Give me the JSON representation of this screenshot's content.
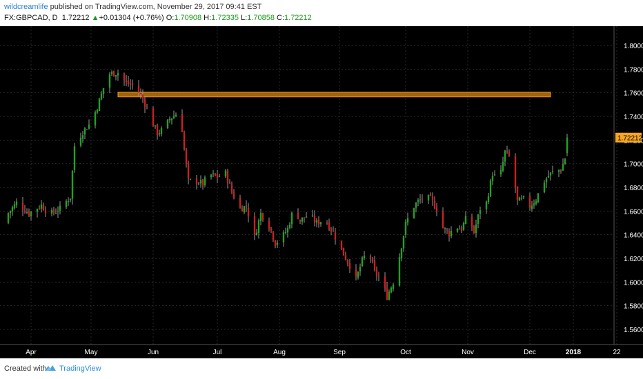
{
  "header": {
    "author": "wildcreamlife",
    "published_text": " published on TradingView.com, November 29, 2017 09:41 EST",
    "symbol": "FX:GBPCAD, D",
    "last": "1.72212",
    "change_arrow": "▲",
    "change": "+0.01304 (+0.76%)",
    "o_label": "O:",
    "o_value": "1.70908",
    "h_label": "H:",
    "h_value": "1.72335",
    "l_label": "L:",
    "l_value": "1.70858",
    "c_label": "C:",
    "c_value": "1.72212"
  },
  "footer": {
    "created_label": "Created with",
    "brand": "TradingView"
  },
  "colors": {
    "background": "#000000",
    "grid": "#2a2a2a",
    "up": "#1fa51f",
    "down": "#cc1f1f",
    "wick": "#9a9a9a",
    "zone_fill": "#c87a10",
    "zone_stroke": "#ff9a1a",
    "price_label_bg": "#f5a623",
    "axis_text": "#ffffff"
  },
  "chart_data": {
    "type": "candlestick",
    "symbol": "FX:GBPCAD",
    "interval": "D",
    "ylim": [
      1.55,
      1.81
    ],
    "y_ticks": [
      "1.80000",
      "1.78000",
      "1.76000",
      "1.74000",
      "1.72000",
      "1.70000",
      "1.68000",
      "1.66000",
      "1.64000",
      "1.62000",
      "1.60000",
      "1.58000",
      "1.56000"
    ],
    "x_ticks": [
      "Apr",
      "May",
      "Jun",
      "Jul",
      "Aug",
      "Sep",
      "Oct",
      "Nov",
      "Dec",
      "2018",
      "22"
    ],
    "last_price_label": "1.72212",
    "resistance_zone": {
      "y_low": 1.7565,
      "y_high": 1.7605,
      "x_start": "May 19",
      "x_end": "Jan 01"
    },
    "close_path_knots": [
      [
        0,
        1.654
      ],
      [
        6,
        1.667
      ],
      [
        12,
        1.658
      ],
      [
        18,
        1.665
      ],
      [
        22,
        1.657
      ],
      [
        27,
        1.662
      ],
      [
        32,
        1.672
      ],
      [
        34,
        1.715
      ],
      [
        38,
        1.727
      ],
      [
        42,
        1.735
      ],
      [
        45,
        1.748
      ],
      [
        48,
        1.764
      ],
      [
        51,
        1.776
      ],
      [
        55,
        1.777
      ],
      [
        59,
        1.768
      ],
      [
        63,
        1.766
      ],
      [
        67,
        1.755
      ],
      [
        71,
        1.737
      ],
      [
        74,
        1.726
      ],
      [
        77,
        1.729
      ],
      [
        80,
        1.738
      ],
      [
        83,
        1.742
      ],
      [
        85,
        1.746
      ],
      [
        87,
        1.712
      ],
      [
        89,
        1.685
      ],
      [
        92,
        1.686
      ],
      [
        96,
        1.683
      ],
      [
        99,
        1.691
      ],
      [
        103,
        1.689
      ],
      [
        107,
        1.692
      ],
      [
        110,
        1.676
      ],
      [
        114,
        1.662
      ],
      [
        117,
        1.664
      ],
      [
        121,
        1.638
      ],
      [
        124,
        1.658
      ],
      [
        128,
        1.648
      ],
      [
        131,
        1.633
      ],
      [
        134,
        1.637
      ],
      [
        137,
        1.645
      ],
      [
        140,
        1.663
      ],
      [
        143,
        1.652
      ],
      [
        147,
        1.657
      ],
      [
        151,
        1.65
      ],
      [
        155,
        1.653
      ],
      [
        159,
        1.642
      ],
      [
        163,
        1.627
      ],
      [
        167,
        1.614
      ],
      [
        170,
        1.602
      ],
      [
        173,
        1.618
      ],
      [
        176,
        1.628
      ],
      [
        179,
        1.608
      ],
      [
        182,
        1.602
      ],
      [
        185,
        1.588
      ],
      [
        188,
        1.6
      ],
      [
        191,
        1.622
      ],
      [
        194,
        1.649
      ],
      [
        197,
        1.662
      ],
      [
        200,
        1.668
      ],
      [
        203,
        1.672
      ],
      [
        206,
        1.67
      ],
      [
        209,
        1.662
      ],
      [
        212,
        1.646
      ],
      [
        215,
        1.641
      ],
      [
        218,
        1.647
      ],
      [
        221,
        1.645
      ],
      [
        224,
        1.657
      ],
      [
        227,
        1.642
      ],
      [
        230,
        1.662
      ],
      [
        233,
        1.667
      ],
      [
        236,
        1.692
      ],
      [
        239,
        1.684
      ],
      [
        242,
        1.71
      ],
      [
        245,
        1.704
      ],
      [
        248,
        1.668
      ],
      [
        251,
        1.67
      ],
      [
        254,
        1.664
      ],
      [
        257,
        1.67
      ],
      [
        260,
        1.683
      ],
      [
        263,
        1.69
      ],
      [
        266,
        1.694
      ],
      [
        269,
        1.695
      ],
      [
        272,
        1.709
      ],
      [
        274,
        1.722
      ]
    ]
  }
}
